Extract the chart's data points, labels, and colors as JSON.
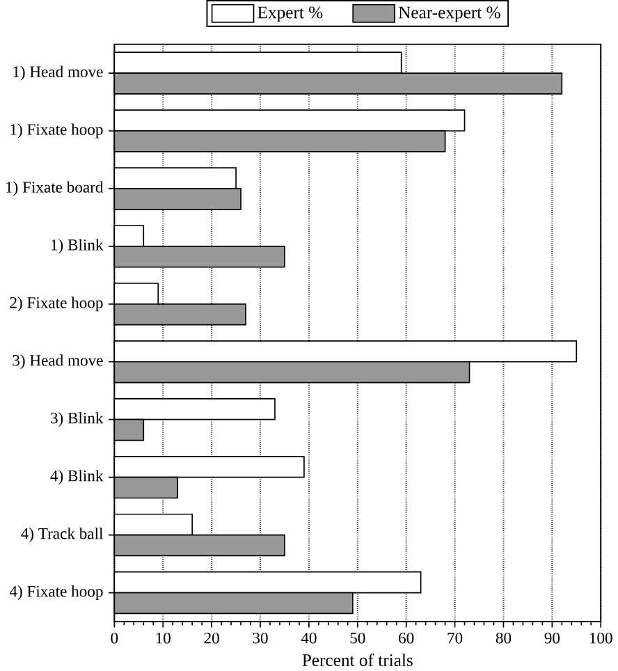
{
  "chart_data": {
    "type": "bar",
    "orientation": "horizontal",
    "xlabel": "Percent of trials",
    "categories": [
      "1) Head move",
      "1) Fixate hoop",
      "1) Fixate board",
      "1) Blink",
      "2) Fixate hoop",
      "3) Head move",
      "3) Blink",
      "4) Blink",
      "4) Track ball",
      "4) Fixate hoop"
    ],
    "series": [
      {
        "name": "Expert %",
        "color": "#ffffff",
        "values": [
          59,
          72,
          25,
          6,
          9,
          95,
          33,
          39,
          16,
          63
        ]
      },
      {
        "name": "Near-expert %",
        "color": "#999999",
        "values": [
          92,
          68,
          26,
          35,
          27,
          73,
          6,
          13,
          35,
          49
        ]
      }
    ],
    "xlim": [
      0,
      100
    ],
    "xticks": [
      0,
      10,
      20,
      30,
      40,
      50,
      60,
      70,
      80,
      90,
      100
    ],
    "grid": "x",
    "legend": "top"
  }
}
